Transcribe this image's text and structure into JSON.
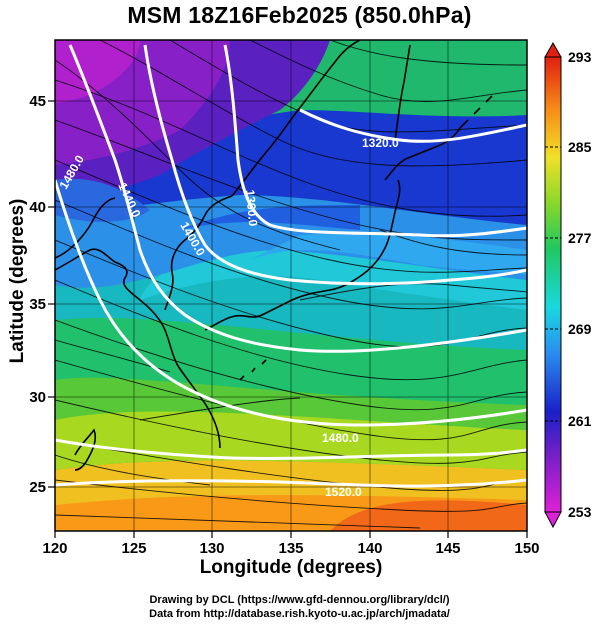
{
  "title": "MSM 18Z16Feb2025 (850.0hPa)",
  "axes": {
    "xlabel": "Longitude (degrees)",
    "ylabel": "Latitude  (degrees)",
    "xticks": [
      120,
      125,
      130,
      135,
      140,
      145,
      150
    ],
    "yticks": [
      25,
      30,
      35,
      40,
      45
    ],
    "xlim": [
      120,
      150
    ],
    "ylim": [
      22.4,
      47.6
    ]
  },
  "colorbar": {
    "ticks": [
      293,
      285,
      277,
      269,
      261,
      253
    ],
    "range": [
      253,
      293
    ]
  },
  "contours": [
    {
      "label": "1320.0"
    },
    {
      "label": "1360.0"
    },
    {
      "label": "1400.0"
    },
    {
      "label": "1440.0"
    },
    {
      "label": "1480.0"
    },
    {
      "label": "1480.0"
    },
    {
      "label": "1520.0"
    }
  ],
  "credits": {
    "line1": "Drawing by DCL (https://www.gfd-dennou.org/library/dcl/)",
    "line2": "Data from http://database.rish.kyoto-u.ac.jp/arch/jmadata/"
  }
}
